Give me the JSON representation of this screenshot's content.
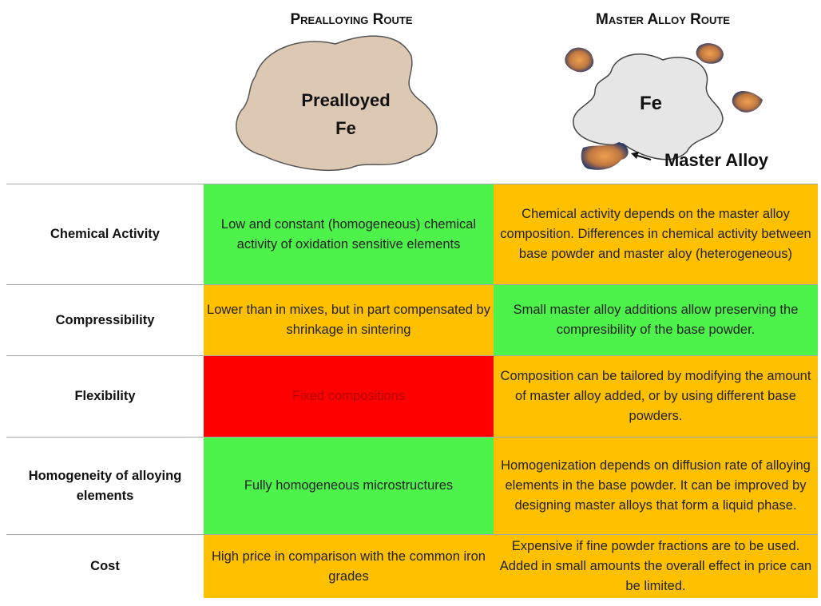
{
  "header": {
    "columns": [
      "Prealloying Route",
      "Master Alloy Route"
    ]
  },
  "illustrations": {
    "prealloyed": [
      "Prealloyed",
      "Fe"
    ],
    "base": "Fe",
    "master_alloy": "Master Alloy"
  },
  "table": {
    "rows": [
      [
        "Chemical Activity",
        "Low and constant (homogeneous) chemical activity of oxidation sensitive elements",
        "Chemical activity depends on the master alloy composition. Differences in chemical activity between base powder and master aloy (heterogeneous)"
      ],
      [
        "Compressibility",
        "Lower than in mixes, but in part compensated by shrinkage in sintering",
        "Small master alloy additions allow preserving the compresibility of the base powder."
      ],
      [
        "Flexibility",
        "Fixed compositions",
        "Composition can be tailored by modifying the amount of master alloy added, or by using different base powders."
      ],
      [
        "Homogeneity of alloying elements",
        "Fully homogeneous microstructures",
        "Homogenization depends on diffusion rate of alloying elements in the base powder. It can be improved by designing master alloys that form a liquid phase."
      ],
      [
        "Cost",
        "High price in comparison with the common iron grades",
        "Expensive if fine powder fractions are to be used. Added in small amounts the overall effect in price can be limited."
      ]
    ]
  }
}
